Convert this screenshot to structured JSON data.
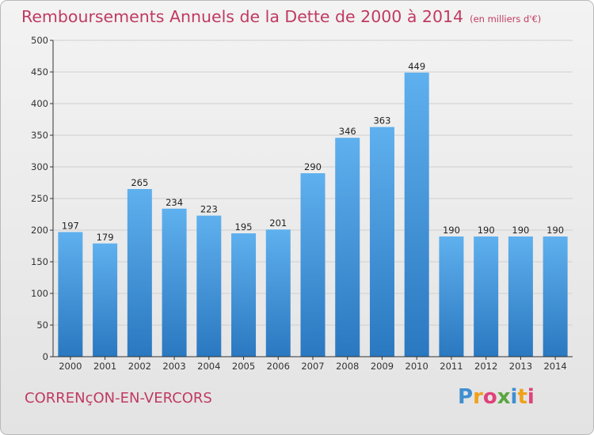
{
  "title": "Remboursements Annuels de la Dette de 2000 à 2014",
  "title_unit": "(en milliers d'€)",
  "commune": "CORRENçON-EN-VERCORS",
  "logo": {
    "text": "Proxiti",
    "letters": [
      {
        "ch": "P",
        "color": "#3f8fd0"
      },
      {
        "ch": "r",
        "color": "#f0a21a"
      },
      {
        "ch": "o",
        "color": "#e0427a"
      },
      {
        "ch": "x",
        "color": "#5aa640"
      },
      {
        "ch": "i",
        "color": "#3f8fd0"
      },
      {
        "ch": "t",
        "color": "#f0a21a"
      },
      {
        "ch": "i",
        "color": "#e0427a"
      }
    ]
  },
  "colors": {
    "bar_top": "#5fb0ee",
    "bar_bottom": "#2a78c0",
    "grid": "#cfcfcf",
    "axis": "#333333",
    "title": "#c03a62"
  },
  "chart_data": {
    "type": "bar",
    "categories": [
      "2000",
      "2001",
      "2002",
      "2003",
      "2004",
      "2005",
      "2006",
      "2007",
      "2008",
      "2009",
      "2010",
      "2011",
      "2012",
      "2013",
      "2014"
    ],
    "values": [
      197,
      179,
      265,
      234,
      223,
      195,
      201,
      290,
      346,
      363,
      449,
      190,
      190,
      190,
      190
    ],
    "title": "Remboursements Annuels de la Dette de 2000 à 2014",
    "xlabel": "",
    "ylabel": "",
    "ylim": [
      0,
      500
    ],
    "yticks": [
      0,
      50,
      100,
      150,
      200,
      250,
      300,
      350,
      400,
      450,
      500
    ],
    "grid": true,
    "data_labels": true
  }
}
